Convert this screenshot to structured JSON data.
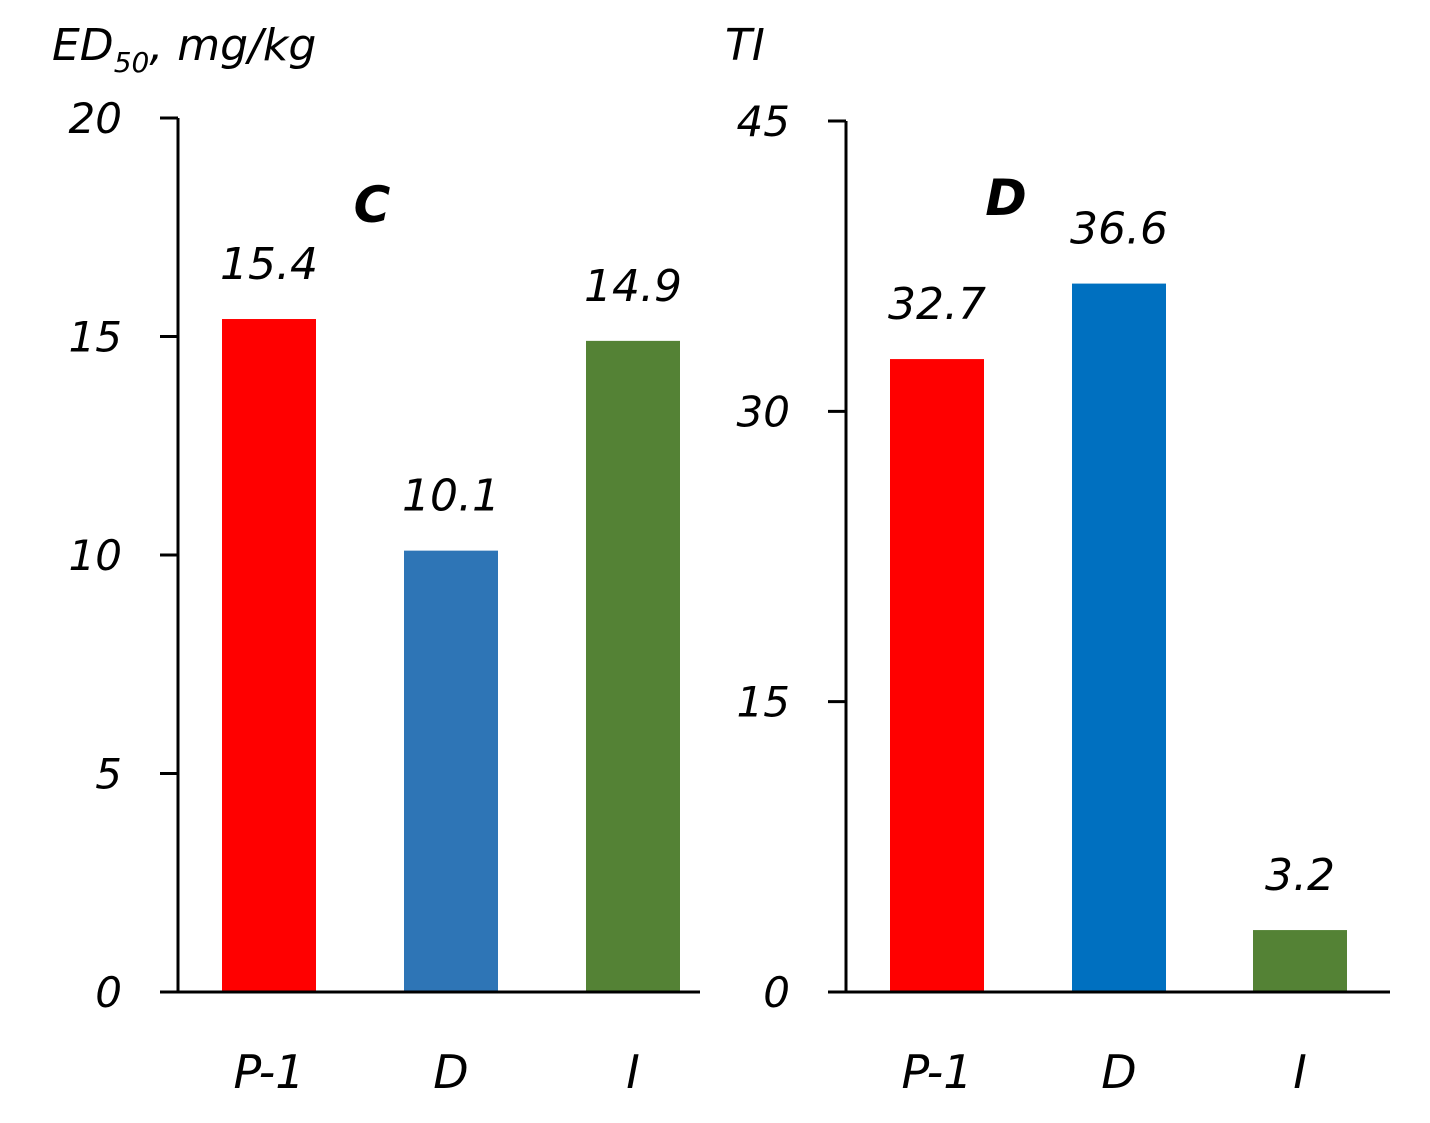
{
  "chart_data": [
    {
      "type": "bar",
      "panel_label": "C",
      "ylabel": {
        "main": "ED",
        "subscript": "50",
        "rest": ", mg/kg"
      },
      "categories": [
        "P-1",
        "D",
        "I"
      ],
      "values": [
        15.4,
        10.1,
        14.9
      ],
      "value_labels": [
        "15.4",
        "10.1",
        "14.9"
      ],
      "colors": [
        "#ff0000",
        "#2e75b6",
        "#548235"
      ],
      "ylim": [
        0,
        20
      ],
      "yticks": [
        0,
        5,
        10,
        15,
        20
      ],
      "grid": false,
      "legend": "none"
    },
    {
      "type": "bar",
      "panel_label": "D",
      "ylabel": {
        "main": "TI",
        "subscript": "",
        "rest": ""
      },
      "categories": [
        "P-1",
        "D",
        "I"
      ],
      "values": [
        32.7,
        36.6,
        3.2
      ],
      "value_labels": [
        "32.7",
        "36.6",
        "3.2"
      ],
      "colors": [
        "#ff0000",
        "#0070c0",
        "#548235"
      ],
      "ylim": [
        0,
        45
      ],
      "yticks": [
        0,
        15,
        30,
        45
      ],
      "grid": false,
      "legend": "none"
    }
  ]
}
